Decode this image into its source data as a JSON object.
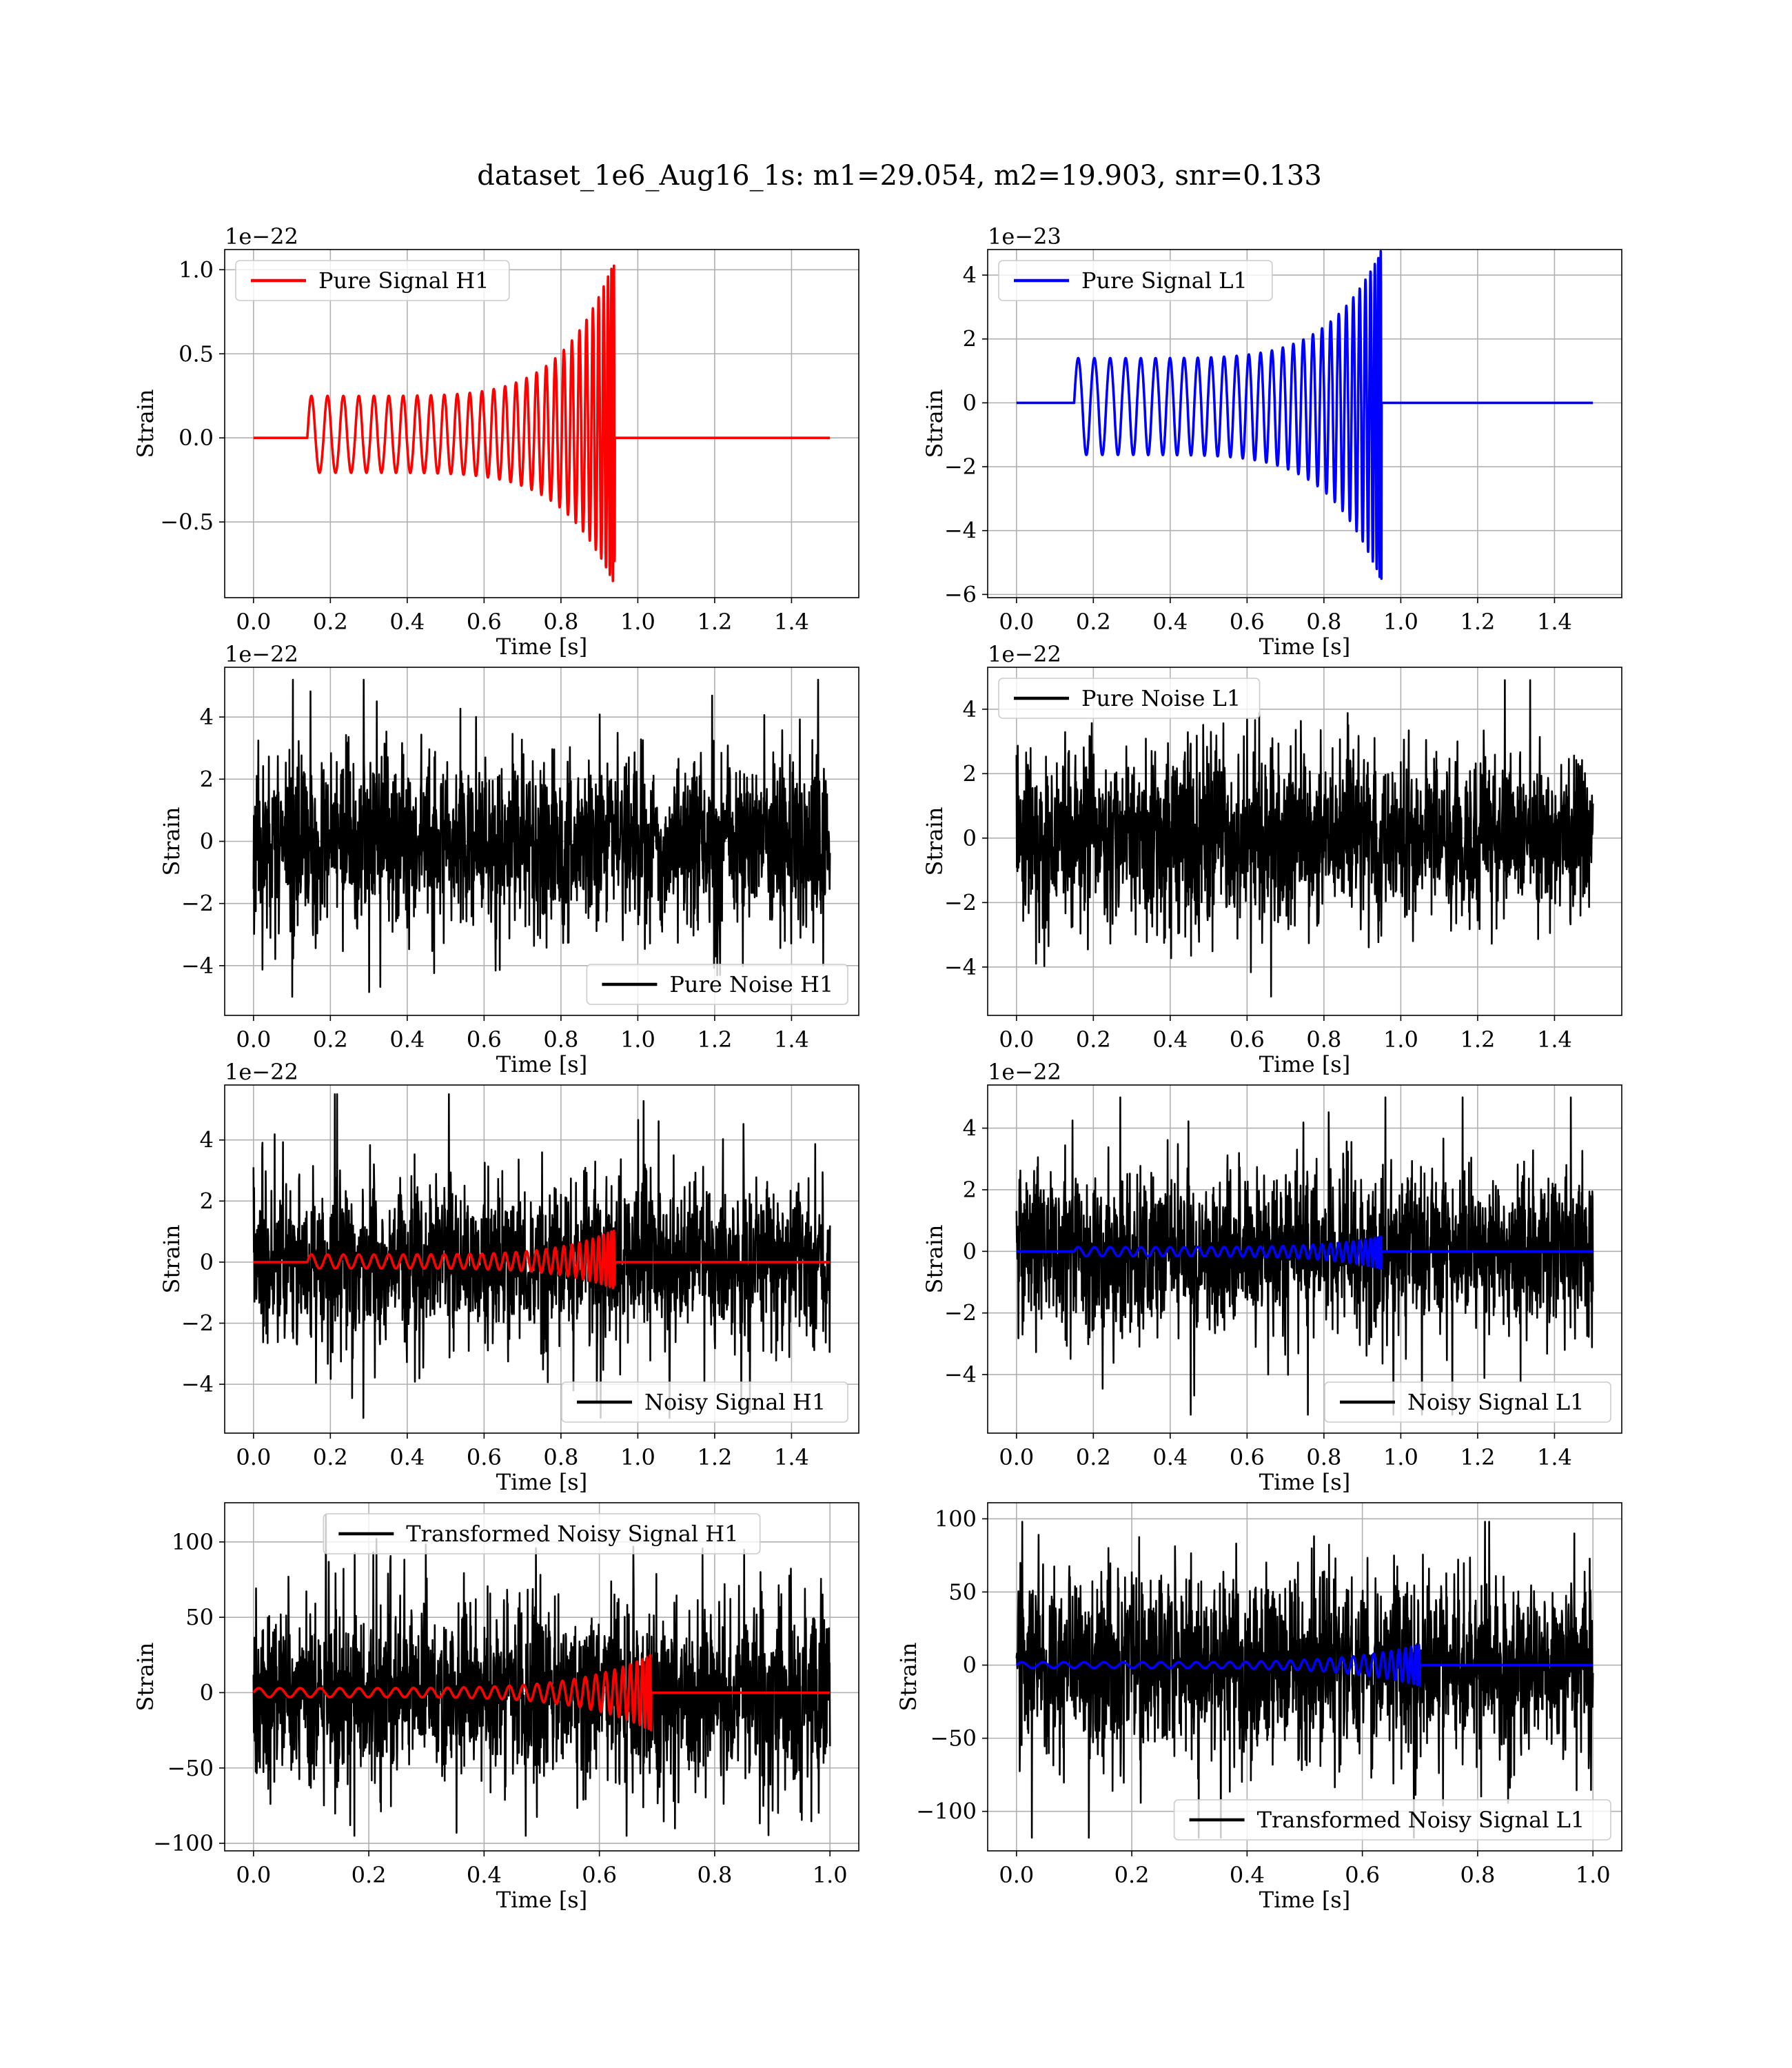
{
  "figure": {
    "suptitle": "dataset_1e6_Aug16_1s: m1=29.054, m2=19.903, snr=0.133"
  },
  "chart_data": [
    {
      "type": "line",
      "id": "pure-signal-h1",
      "xlabel": "Time [s]",
      "ylabel": "Strain",
      "offset_text": "1e−22",
      "xlim": [
        -0.075,
        1.575
      ],
      "ylim": [
        -0.95,
        1.12
      ],
      "xticks": [
        0.0,
        0.2,
        0.4,
        0.6,
        0.8,
        1.0,
        1.2,
        1.4
      ],
      "xtick_labels": [
        "0.0",
        "0.2",
        "0.4",
        "0.6",
        "0.8",
        "1.0",
        "1.2",
        "1.4"
      ],
      "yticks": [
        -0.5,
        0.0,
        0.5,
        1.0
      ],
      "ytick_labels": [
        "−0.5",
        "0.0",
        "0.5",
        "1.0"
      ],
      "grid": true,
      "legend": {
        "loc": "upper-left",
        "entries": [
          {
            "label": "Pure Signal H1",
            "color": "#ff0000"
          }
        ]
      },
      "series": [
        {
          "name": "Pure Signal H1",
          "color": "#ff0000",
          "kind": "chirp",
          "t_range": [
            0.0,
            1.5
          ],
          "t_start": 0.14,
          "t_merge": 0.94,
          "cycles": 30,
          "amp_start": 0.25,
          "amp_peak": 1.06,
          "amp_trough": -0.88,
          "amp_scale": 1.0
        }
      ]
    },
    {
      "type": "line",
      "id": "pure-signal-l1",
      "xlabel": "Time [s]",
      "ylabel": "Strain",
      "offset_text": "1e−23",
      "xlim": [
        -0.075,
        1.575
      ],
      "ylim": [
        -6.1,
        4.8
      ],
      "xticks": [
        0.0,
        0.2,
        0.4,
        0.6,
        0.8,
        1.0,
        1.2,
        1.4
      ],
      "xtick_labels": [
        "0.0",
        "0.2",
        "0.4",
        "0.6",
        "0.8",
        "1.0",
        "1.2",
        "1.4"
      ],
      "yticks": [
        -6,
        -4,
        -2,
        0,
        2,
        4
      ],
      "ytick_labels": [
        "−6",
        "−4",
        "−2",
        "0",
        "2",
        "4"
      ],
      "grid": true,
      "legend": {
        "loc": "upper-left",
        "entries": [
          {
            "label": "Pure Signal L1",
            "color": "#0000ff"
          }
        ]
      },
      "series": [
        {
          "name": "Pure Signal L1",
          "color": "#0000ff",
          "kind": "chirp",
          "t_range": [
            0.0,
            1.5
          ],
          "t_start": 0.15,
          "t_merge": 0.95,
          "cycles": 30,
          "amp_start": 1.4,
          "amp_peak": 4.8,
          "amp_trough": -5.6,
          "amp_scale": 1.0
        }
      ]
    },
    {
      "type": "line",
      "id": "pure-noise-h1",
      "xlabel": "Time [s]",
      "ylabel": "Strain",
      "offset_text": "1e−22",
      "xlim": [
        -0.075,
        1.575
      ],
      "ylim": [
        -5.6,
        5.6
      ],
      "xticks": [
        0.0,
        0.2,
        0.4,
        0.6,
        0.8,
        1.0,
        1.2,
        1.4
      ],
      "xtick_labels": [
        "0.0",
        "0.2",
        "0.4",
        "0.6",
        "0.8",
        "1.0",
        "1.2",
        "1.4"
      ],
      "yticks": [
        -4,
        -2,
        0,
        2,
        4
      ],
      "ytick_labels": [
        "−4",
        "−2",
        "0",
        "2",
        "4"
      ],
      "grid": true,
      "legend": {
        "loc": "lower-right",
        "entries": [
          {
            "label": "Pure Noise H1",
            "color": "#000000"
          }
        ]
      },
      "series": [
        {
          "name": "Pure Noise H1",
          "color": "#000000",
          "kind": "noise",
          "t_range": [
            0.0,
            1.5
          ],
          "sigma": 1.35,
          "min": -5.0,
          "max": 5.2,
          "seed": 11
        }
      ]
    },
    {
      "type": "line",
      "id": "pure-noise-l1",
      "xlabel": "Time [s]",
      "ylabel": "Strain",
      "offset_text": "1e−22",
      "xlim": [
        -0.075,
        1.575
      ],
      "ylim": [
        -5.5,
        5.3
      ],
      "xticks": [
        0.0,
        0.2,
        0.4,
        0.6,
        0.8,
        1.0,
        1.2,
        1.4
      ],
      "xtick_labels": [
        "0.0",
        "0.2",
        "0.4",
        "0.6",
        "0.8",
        "1.0",
        "1.2",
        "1.4"
      ],
      "yticks": [
        -4,
        -2,
        0,
        2,
        4
      ],
      "ytick_labels": [
        "−4",
        "−2",
        "0",
        "2",
        "4"
      ],
      "grid": true,
      "legend": {
        "loc": "upper-left",
        "entries": [
          {
            "label": "Pure Noise L1",
            "color": "#000000"
          }
        ]
      },
      "series": [
        {
          "name": "Pure Noise L1",
          "color": "#000000",
          "kind": "noise",
          "t_range": [
            0.0,
            1.5
          ],
          "sigma": 1.3,
          "min": -5.2,
          "max": 4.9,
          "seed": 23
        }
      ]
    },
    {
      "type": "line",
      "id": "noisy-signal-h1",
      "xlabel": "Time [s]",
      "ylabel": "Strain",
      "offset_text": "1e−22",
      "xlim": [
        -0.075,
        1.575
      ],
      "ylim": [
        -5.6,
        5.8
      ],
      "xticks": [
        0.0,
        0.2,
        0.4,
        0.6,
        0.8,
        1.0,
        1.2,
        1.4
      ],
      "xtick_labels": [
        "0.0",
        "0.2",
        "0.4",
        "0.6",
        "0.8",
        "1.0",
        "1.2",
        "1.4"
      ],
      "yticks": [
        -4,
        -2,
        0,
        2,
        4
      ],
      "ytick_labels": [
        "−4",
        "−2",
        "0",
        "2",
        "4"
      ],
      "grid": true,
      "legend": {
        "loc": "lower-right",
        "entries": [
          {
            "label": "Noisy Signal H1",
            "color": "#000000"
          }
        ]
      },
      "series": [
        {
          "name": "Noisy Signal H1",
          "color": "#000000",
          "kind": "noise",
          "t_range": [
            0.0,
            1.5
          ],
          "sigma": 1.35,
          "min": -5.1,
          "max": 5.5,
          "seed": 37
        },
        {
          "color": "#ff0000",
          "kind": "chirp",
          "t_range": [
            0.0,
            1.5
          ],
          "t_start": 0.14,
          "t_merge": 0.94,
          "cycles": 30,
          "amp_start": 0.25,
          "amp_peak": 1.06,
          "amp_trough": -0.88,
          "amp_scale": 1.0
        }
      ]
    },
    {
      "type": "line",
      "id": "noisy-signal-l1",
      "xlabel": "Time [s]",
      "ylabel": "Strain",
      "offset_text": "1e−22",
      "xlim": [
        -0.075,
        1.575
      ],
      "ylim": [
        -5.9,
        5.4
      ],
      "xticks": [
        0.0,
        0.2,
        0.4,
        0.6,
        0.8,
        1.0,
        1.2,
        1.4
      ],
      "xtick_labels": [
        "0.0",
        "0.2",
        "0.4",
        "0.6",
        "0.8",
        "1.0",
        "1.2",
        "1.4"
      ],
      "yticks": [
        -4,
        -2,
        0,
        2,
        4
      ],
      "ytick_labels": [
        "−4",
        "−2",
        "0",
        "2",
        "4"
      ],
      "grid": true,
      "legend": {
        "loc": "lower-right",
        "entries": [
          {
            "label": "Noisy Signal L1",
            "color": "#000000"
          }
        ]
      },
      "series": [
        {
          "name": "Noisy Signal L1",
          "color": "#000000",
          "kind": "noise",
          "t_range": [
            0.0,
            1.5
          ],
          "sigma": 1.3,
          "min": -5.3,
          "max": 5.0,
          "seed": 53
        },
        {
          "color": "#0000ff",
          "kind": "chirp",
          "t_range": [
            0.0,
            1.5
          ],
          "t_start": 0.15,
          "t_merge": 0.95,
          "cycles": 30,
          "amp_start": 1.4,
          "amp_peak": 4.8,
          "amp_trough": -5.6,
          "amp_scale": 0.1
        }
      ]
    },
    {
      "type": "line",
      "id": "transformed-noisy-signal-h1",
      "xlabel": "Time [s]",
      "ylabel": "Strain",
      "offset_text": "",
      "xlim": [
        -0.05,
        1.05
      ],
      "ylim": [
        -105,
        126
      ],
      "xticks": [
        0.0,
        0.2,
        0.4,
        0.6,
        0.8,
        1.0
      ],
      "xtick_labels": [
        "0.0",
        "0.2",
        "0.4",
        "0.6",
        "0.8",
        "1.0"
      ],
      "yticks": [
        -100,
        -50,
        0,
        50,
        100
      ],
      "ytick_labels": [
        "−100",
        "−50",
        "0",
        "50",
        "100"
      ],
      "grid": true,
      "legend": {
        "loc": "upper-center",
        "entries": [
          {
            "label": "Transformed Noisy Signal H1",
            "color": "#000000"
          }
        ]
      },
      "series": [
        {
          "name": "Transformed Noisy Signal H1",
          "color": "#000000",
          "kind": "noise",
          "t_range": [
            0.0,
            1.0
          ],
          "sigma": 30,
          "min": -95,
          "max": 118,
          "seed": 71
        },
        {
          "color": "#ff0000",
          "kind": "chirp",
          "t_range": [
            0.0,
            1.0
          ],
          "t_start": 0.0,
          "t_merge": 0.69,
          "cycles": 30,
          "amp_start": 3,
          "amp_peak": 25,
          "amp_trough": -25,
          "amp_scale": 1.0
        }
      ]
    },
    {
      "type": "line",
      "id": "transformed-noisy-signal-l1",
      "xlabel": "Time [s]",
      "ylabel": "Strain",
      "offset_text": "",
      "xlim": [
        -0.05,
        1.05
      ],
      "ylim": [
        -127,
        111
      ],
      "xticks": [
        0.0,
        0.2,
        0.4,
        0.6,
        0.8,
        1.0
      ],
      "xtick_labels": [
        "0.0",
        "0.2",
        "0.4",
        "0.6",
        "0.8",
        "1.0"
      ],
      "yticks": [
        -100,
        -50,
        0,
        50,
        100
      ],
      "ytick_labels": [
        "−100",
        "−50",
        "0",
        "50",
        "100"
      ],
      "grid": true,
      "legend": {
        "loc": "lower-right",
        "entries": [
          {
            "label": "Transformed Noisy Signal L1",
            "color": "#000000"
          }
        ]
      },
      "series": [
        {
          "name": "Transformed Noisy Signal L1",
          "color": "#000000",
          "kind": "noise",
          "t_range": [
            0.0,
            1.0
          ],
          "sigma": 30,
          "min": -118,
          "max": 98,
          "seed": 89
        },
        {
          "color": "#0000ff",
          "kind": "chirp",
          "t_range": [
            0.0,
            1.0
          ],
          "t_start": 0.0,
          "t_merge": 0.7,
          "cycles": 30,
          "amp_start": 2,
          "amp_peak": 14,
          "amp_trough": -14,
          "amp_scale": 1.0
        }
      ]
    }
  ]
}
